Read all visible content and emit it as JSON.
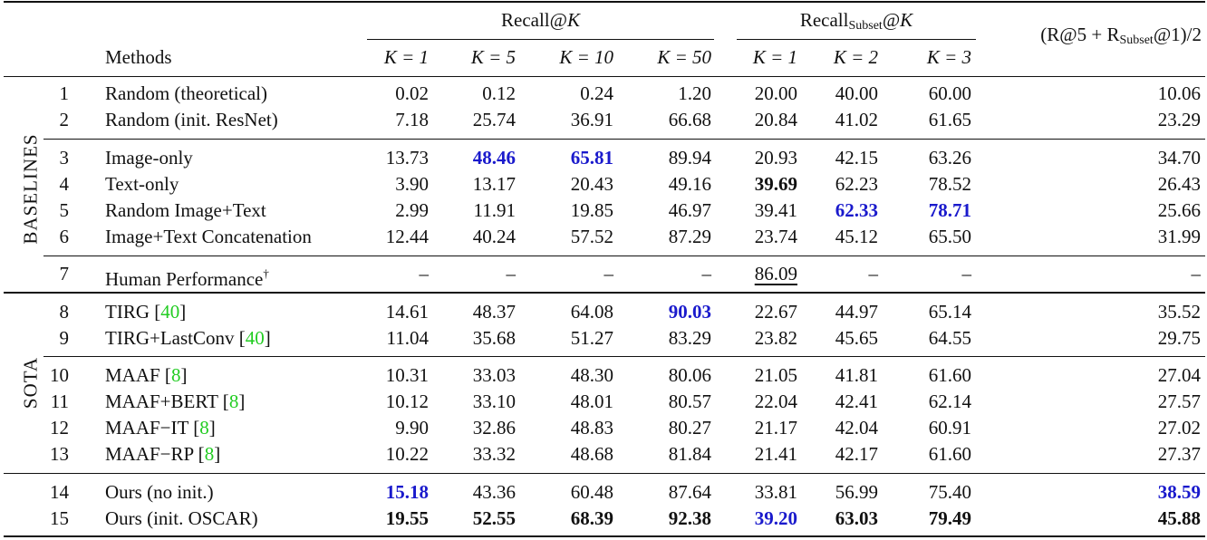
{
  "header": {
    "methods_label": "Methods",
    "recall_group": "Recall@",
    "recall_group_var": "K",
    "recall_subset_group_main": "Recall",
    "recall_subset_group_sub": "Subset",
    "recall_subset_group_tail": "@",
    "recall_subset_group_var": "K",
    "combined_metric_pre": "(R@5 + R",
    "combined_metric_sub": "Subset",
    "combined_metric_post": "@1)/2",
    "recall_cols": [
      "K = 1",
      "K = 5",
      "K = 10",
      "K = 50"
    ],
    "subset_cols": [
      "K = 1",
      "K = 2",
      "K = 3"
    ]
  },
  "sections": {
    "baselines": "BASELINES",
    "sota": "SOTA"
  },
  "rows": [
    {
      "id": "1",
      "method": "Random (theoretical)",
      "cite": "",
      "values": [
        "0.02",
        "0.12",
        "0.24",
        "1.20",
        "20.00",
        "40.00",
        "60.00",
        "10.06"
      ]
    },
    {
      "id": "2",
      "method": "Random (init. ResNet)",
      "cite": "",
      "values": [
        "7.18",
        "25.74",
        "36.91",
        "66.68",
        "20.84",
        "41.02",
        "61.65",
        "23.29"
      ]
    },
    {
      "id": "3",
      "method": "Image-only",
      "cite": "",
      "values": [
        "13.73",
        "48.46",
        "65.81",
        "89.94",
        "20.93",
        "42.15",
        "63.26",
        "34.70"
      ]
    },
    {
      "id": "4",
      "method": "Text-only",
      "cite": "",
      "values": [
        "3.90",
        "13.17",
        "20.43",
        "49.16",
        "39.69",
        "62.23",
        "78.52",
        "26.43"
      ]
    },
    {
      "id": "5",
      "method": "Random Image+Text",
      "cite": "",
      "values": [
        "2.99",
        "11.91",
        "19.85",
        "46.97",
        "39.41",
        "62.33",
        "78.71",
        "25.66"
      ]
    },
    {
      "id": "6",
      "method": "Image+Text Concatenation",
      "cite": "",
      "values": [
        "12.44",
        "40.24",
        "57.52",
        "87.29",
        "23.74",
        "45.12",
        "65.50",
        "31.99"
      ]
    },
    {
      "id": "7",
      "method": "Human Performance",
      "dagger": "†",
      "cite": "",
      "values": [
        "–",
        "–",
        "–",
        "–",
        "86.09",
        "–",
        "–",
        "–"
      ]
    },
    {
      "id": "8",
      "method": "TIRG [",
      "cite": "40",
      "close": "]",
      "values": [
        "14.61",
        "48.37",
        "64.08",
        "90.03",
        "22.67",
        "44.97",
        "65.14",
        "35.52"
      ]
    },
    {
      "id": "9",
      "method": "TIRG+LastConv [",
      "cite": "40",
      "close": "]",
      "values": [
        "11.04",
        "35.68",
        "51.27",
        "83.29",
        "23.82",
        "45.65",
        "64.55",
        "29.75"
      ]
    },
    {
      "id": "10",
      "method": "MAAF [",
      "cite": "8",
      "close": "]",
      "values": [
        "10.31",
        "33.03",
        "48.30",
        "80.06",
        "21.05",
        "41.81",
        "61.60",
        "27.04"
      ]
    },
    {
      "id": "11",
      "method": "MAAF+BERT [",
      "cite": "8",
      "close": "]",
      "values": [
        "10.12",
        "33.10",
        "48.01",
        "80.57",
        "22.04",
        "42.41",
        "62.14",
        "27.57"
      ]
    },
    {
      "id": "12",
      "method": "MAAF−IT [",
      "cite": "8",
      "close": "]",
      "values": [
        "9.90",
        "32.86",
        "48.83",
        "80.27",
        "21.17",
        "42.04",
        "60.91",
        "27.02"
      ]
    },
    {
      "id": "13",
      "method": "MAAF−RP [",
      "cite": "8",
      "close": "]",
      "values": [
        "10.22",
        "33.32",
        "48.68",
        "81.84",
        "21.41",
        "42.17",
        "61.60",
        "27.37"
      ]
    },
    {
      "id": "14",
      "method": "Ours (no init.)",
      "cite": "",
      "values": [
        "15.18",
        "43.36",
        "60.48",
        "87.64",
        "33.81",
        "56.99",
        "75.40",
        "38.59"
      ]
    },
    {
      "id": "15",
      "method": "Ours (init. OSCAR)",
      "cite": "",
      "values": [
        "19.55",
        "52.55",
        "68.39",
        "92.38",
        "39.20",
        "63.03",
        "79.49",
        "45.88"
      ]
    }
  ],
  "highlights": {
    "best_bold": [
      "4.4",
      "15.0",
      "15.1",
      "15.2",
      "15.3",
      "15.5",
      "15.6",
      "15.7"
    ],
    "second_blue": [
      "3.1",
      "3.2",
      "5.5",
      "5.6",
      "8.3",
      "14.0",
      "14.7",
      "15.4"
    ],
    "underlined": [
      "7.4"
    ]
  },
  "colors": {
    "text": "#111111",
    "second_best": "#1a1acc",
    "citation": "#22cc22"
  }
}
